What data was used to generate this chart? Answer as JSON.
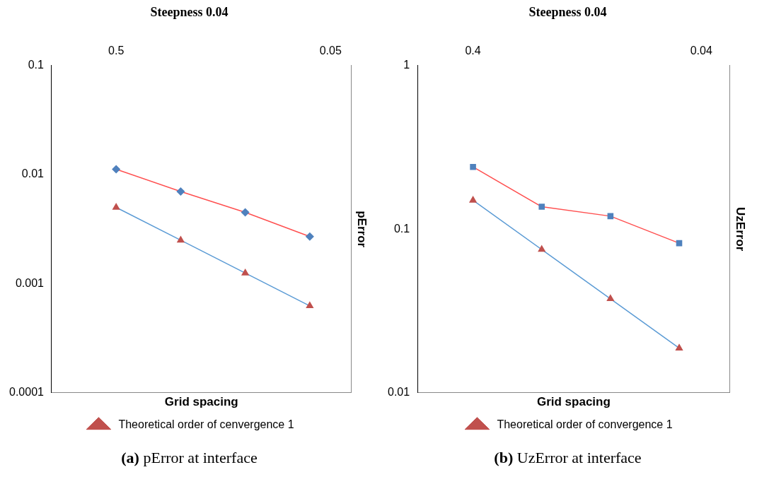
{
  "chart_data": [
    {
      "type": "line",
      "title": "Steepness 0.04",
      "xlabel": "Grid spacing",
      "ylabel": "pError",
      "log": "xy",
      "x": [
        0.5,
        0.25,
        0.125,
        0.0625
      ],
      "xlim": [
        1,
        0.04
      ],
      "xticks": [
        0.5,
        0.05
      ],
      "ylim": [
        0.0001,
        0.1
      ],
      "yticks": [
        0.0001,
        0.001,
        0.01,
        0.1
      ],
      "grid": false,
      "legend": "bottom",
      "series": [
        {
          "color": "#ff5050",
          "colors": [
            "#4f81bd",
            "#4f81bd",
            "#4f81bd",
            "#4f81bd"
          ],
          "marker": "diamond",
          "values": [
            0.0112,
            0.007,
            0.0045,
            0.0027
          ]
        },
        {
          "name": "Theoretical order of cenvergence 1",
          "color": "#5b9bd5",
          "colors": [
            "#c0504d",
            "#c0504d",
            "#c0504d",
            "#c0504d"
          ],
          "marker": "triangle",
          "values": [
            0.005,
            0.0025,
            0.00125,
            0.000625
          ]
        }
      ],
      "annotations": [
        "(a) pError at interface"
      ]
    },
    {
      "type": "line",
      "title": "Steepness 0.04",
      "xlabel": "Grid spacing",
      "ylabel": "UzError",
      "log": "xy",
      "x": [
        0.4,
        0.2,
        0.1,
        0.05
      ],
      "xlim": [
        0.7,
        0.03
      ],
      "xticks": [
        0.4,
        0.04
      ],
      "ylim": [
        0.01,
        1
      ],
      "yticks": [
        0.01,
        0.1,
        1
      ],
      "grid": false,
      "legend": "bottom",
      "series": [
        {
          "color": "#ff5050",
          "colors": [
            "#4f81bd",
            "#4f81bd",
            "#4f81bd",
            "#4f81bd"
          ],
          "marker": "square",
          "values": [
            0.24,
            0.137,
            0.12,
            0.082
          ]
        },
        {
          "name": "Theoretical order of convergence 1",
          "color": "#5b9bd5",
          "colors": [
            "#c0504d",
            "#c0504d",
            "#c0504d",
            "#c0504d"
          ],
          "marker": "triangle",
          "values": [
            0.15,
            0.075,
            0.0375,
            0.0187
          ]
        }
      ],
      "annotations": [
        "(b) UzError at interface"
      ]
    }
  ]
}
